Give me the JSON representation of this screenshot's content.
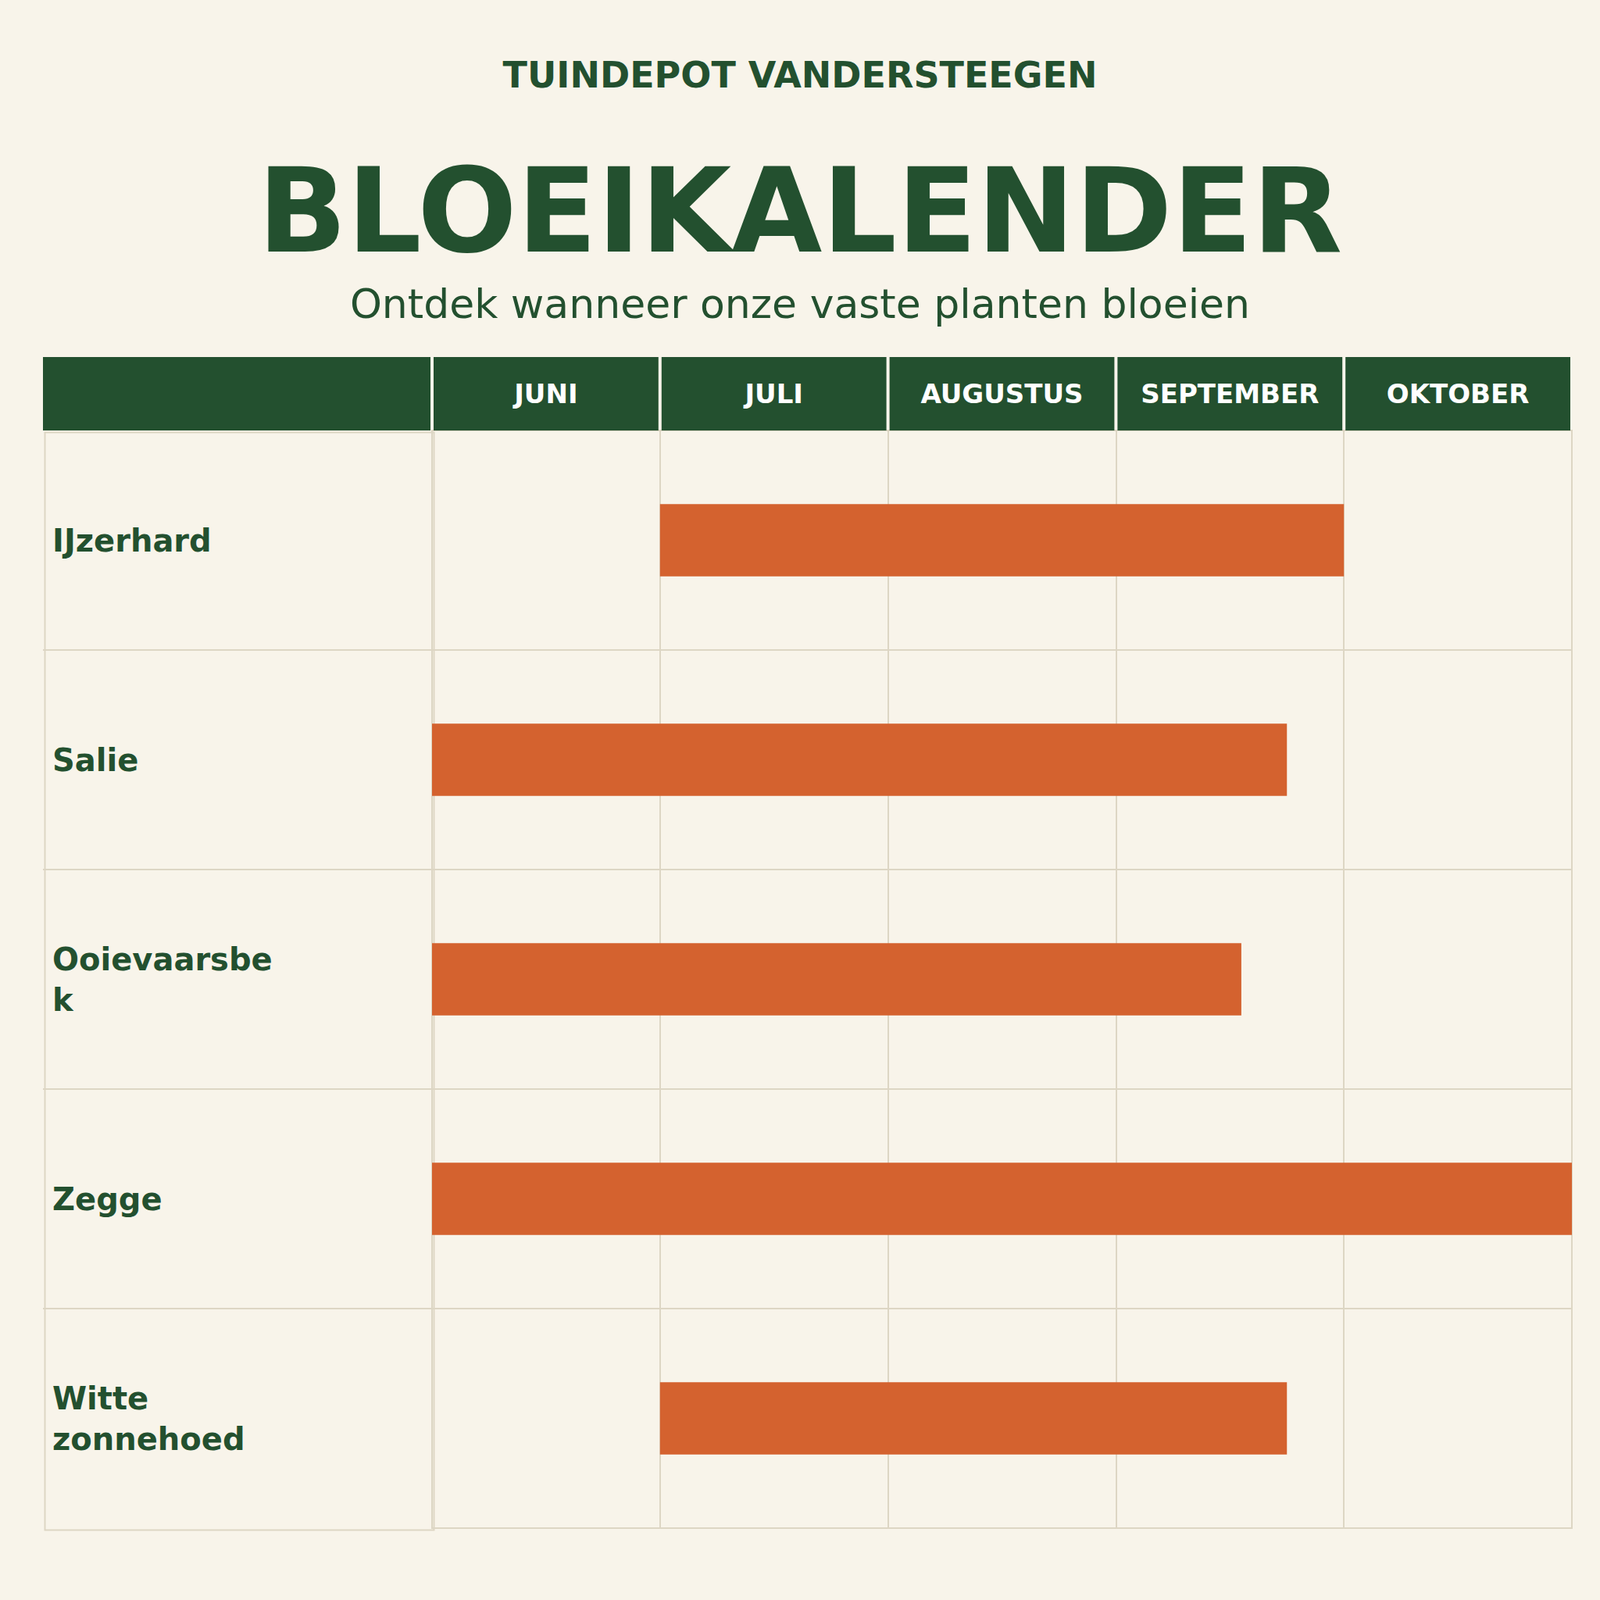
{
  "chart_data": {
    "type": "bar",
    "orientation": "horizontal",
    "brand": "TUINDEPOT VANDERSTEEGEN",
    "title": "BLOEIKALENDER",
    "subtitle": "Ontdek wanneer onze vaste planten bloeien",
    "months": [
      "JUNI",
      "JULI",
      "AUGUSTUS",
      "SEPTEMBER",
      "OKTOBER"
    ],
    "categories": [
      "IJzerhard",
      "Salie",
      "Ooievaarsbek",
      "Zegge",
      "Witte zonnehoed"
    ],
    "start": [
      1,
      0,
      0,
      0,
      1
    ],
    "end": [
      4,
      3.75,
      3.55,
      5,
      3.75
    ],
    "xlim": [
      0,
      5
    ],
    "color": "#d4622f",
    "grid": true
  }
}
